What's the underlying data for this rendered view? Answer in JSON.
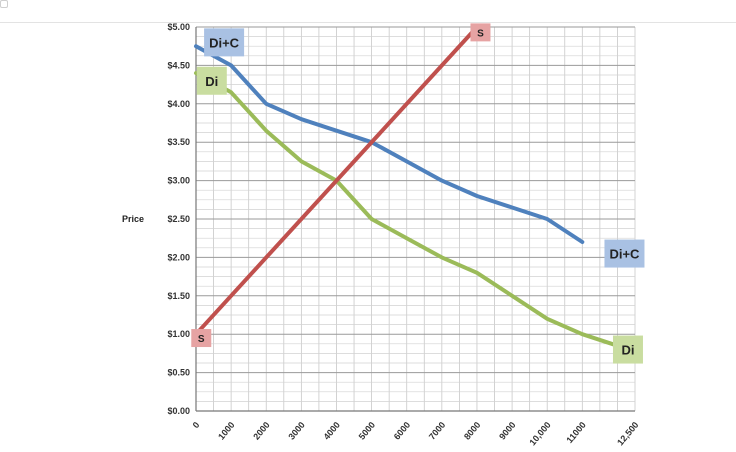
{
  "chart_data": {
    "type": "line",
    "title": "",
    "ylabel": "Price",
    "xlabel": "",
    "xlim": [
      0,
      12500
    ],
    "ylim": [
      0,
      5
    ],
    "grid": true,
    "x_ticks": [
      {
        "value": 0,
        "label": "0"
      },
      {
        "value": 1000,
        "label": "1000"
      },
      {
        "value": 2000,
        "label": "2000"
      },
      {
        "value": 3000,
        "label": "3000"
      },
      {
        "value": 4000,
        "label": "4000"
      },
      {
        "value": 5000,
        "label": "5000"
      },
      {
        "value": 6000,
        "label": "6000"
      },
      {
        "value": 7000,
        "label": "7000"
      },
      {
        "value": 8000,
        "label": "8000"
      },
      {
        "value": 9000,
        "label": "9000"
      },
      {
        "value": 10000,
        "label": "10,000"
      },
      {
        "value": 11000,
        "label": "11000"
      },
      {
        "value": 12500,
        "label": "12,500"
      }
    ],
    "y_ticks": [
      {
        "value": 0,
        "label": "$0.00"
      },
      {
        "value": 0.5,
        "label": "$0.50"
      },
      {
        "value": 1,
        "label": "$1.00"
      },
      {
        "value": 1.5,
        "label": "$1.50"
      },
      {
        "value": 2,
        "label": "$2.00"
      },
      {
        "value": 2.5,
        "label": "$2.50"
      },
      {
        "value": 3,
        "label": "$3.00"
      },
      {
        "value": 3.5,
        "label": "$3.50"
      },
      {
        "value": 4,
        "label": "$4.00"
      },
      {
        "value": 4.5,
        "label": "$4.50"
      },
      {
        "value": 5,
        "label": "$5.00"
      }
    ],
    "series": [
      {
        "name": "Di+C",
        "color": "#4f81bd",
        "tag_color": "#a9c1e3",
        "points": [
          [
            0,
            4.75
          ],
          [
            1000,
            4.5
          ],
          [
            2000,
            4.0
          ],
          [
            3000,
            3.8
          ],
          [
            4000,
            3.65
          ],
          [
            5000,
            3.5
          ],
          [
            6000,
            3.25
          ],
          [
            7000,
            3.0
          ],
          [
            8000,
            2.8
          ],
          [
            9000,
            2.65
          ],
          [
            10000,
            2.5
          ],
          [
            11000,
            2.2
          ]
        ],
        "tags": [
          {
            "x": 800,
            "y": 4.8
          },
          {
            "x": 12200,
            "y": 2.05
          }
        ]
      },
      {
        "name": "Di",
        "color": "#9bbb59",
        "tag_color": "#c9dda0",
        "points": [
          [
            0,
            4.4
          ],
          [
            1000,
            4.15
          ],
          [
            2000,
            3.65
          ],
          [
            3000,
            3.25
          ],
          [
            4000,
            3.0
          ],
          [
            5000,
            2.5
          ],
          [
            6000,
            2.25
          ],
          [
            7000,
            2.0
          ],
          [
            8000,
            1.8
          ],
          [
            9000,
            1.5
          ],
          [
            10000,
            1.2
          ],
          [
            11000,
            1.0
          ],
          [
            12000,
            0.85
          ]
        ],
        "tags": [
          {
            "x": 450,
            "y": 4.3
          },
          {
            "x": 12300,
            "y": 0.8
          }
        ]
      },
      {
        "name": "S",
        "color": "#c0504d",
        "tag_color": "#e6a3a3",
        "points": [
          [
            0,
            1.0
          ],
          [
            8000,
            5.0
          ]
        ],
        "tags": [
          {
            "x": 150,
            "y": 0.95
          },
          {
            "x": 8100,
            "y": 4.93
          }
        ]
      }
    ]
  }
}
